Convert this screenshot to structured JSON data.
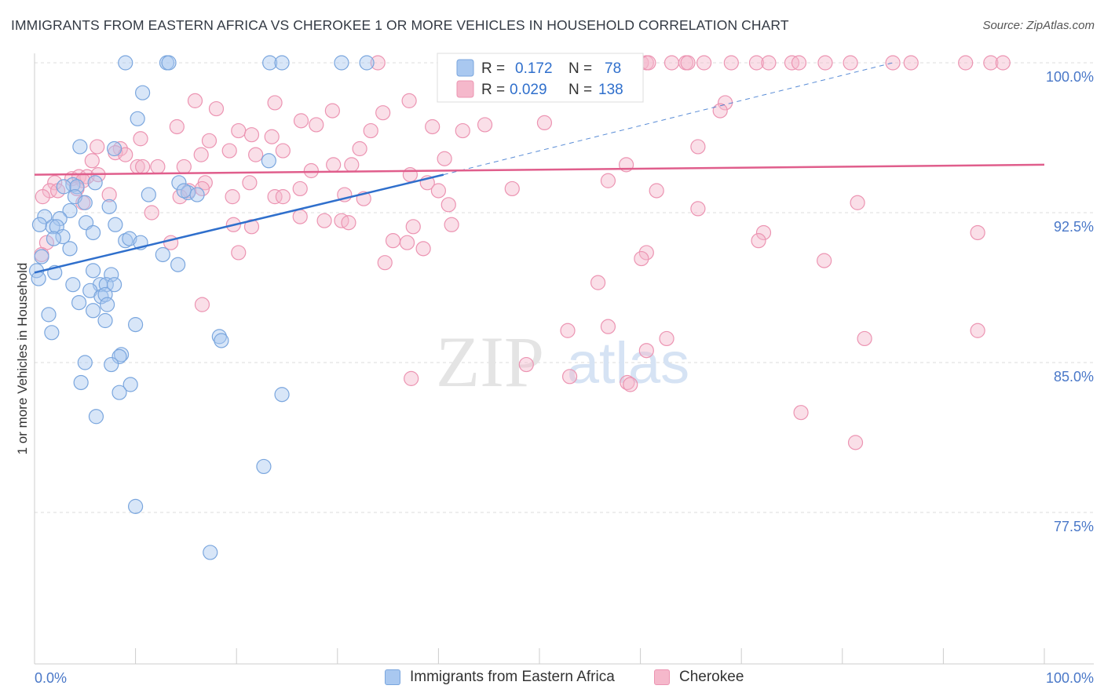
{
  "title": "IMMIGRANTS FROM EASTERN AFRICA VS CHEROKEE 1 OR MORE VEHICLES IN HOUSEHOLD CORRELATION CHART",
  "source": "Source: ZipAtlas.com",
  "watermark": {
    "zip": "ZIP",
    "atlas": "atlas"
  },
  "colors": {
    "blue_fill": "#a9c8f0",
    "blue_stroke": "#7aa6de",
    "blue_line": "#2f6fcc",
    "pink_fill": "#f5b8cb",
    "pink_stroke": "#ec94b2",
    "pink_line": "#e05e8c",
    "tick_text": "#4a78c8",
    "grid": "#dddddd"
  },
  "legend_top": {
    "rows": [
      {
        "r_label": "R =",
        "r_value": "0.172",
        "n_label": "N =",
        "n_value": "78",
        "series": "blue"
      },
      {
        "r_label": "R =",
        "r_value": "0.029",
        "n_label": "N =",
        "n_value": "138",
        "series": "pink"
      }
    ]
  },
  "legend_bottom": [
    {
      "label": "Immigrants from Eastern Africa",
      "series": "blue"
    },
    {
      "label": "Cherokee",
      "series": "pink"
    }
  ],
  "chart_data": {
    "type": "scatter",
    "title": "IMMIGRANTS FROM EASTERN AFRICA VS CHEROKEE 1 OR MORE VEHICLES IN HOUSEHOLD CORRELATION CHART",
    "xlabel": "",
    "ylabel": "1 or more Vehicles in Household",
    "xlim": [
      0,
      100
    ],
    "ylim": [
      70.0,
      101.0
    ],
    "x_tick_labels": [
      "0.0%",
      "100.0%"
    ],
    "y_ticks": [
      77.5,
      85.0,
      92.5,
      100.0
    ],
    "y_tick_labels": [
      "77.5%",
      "85.0%",
      "92.5%",
      "100.0%"
    ],
    "grid": "horizontal dashed",
    "legend_position": "top-center",
    "series": [
      {
        "name": "Immigrants from Eastern Africa",
        "color": "#a9c8f0",
        "R": 0.172,
        "N": 78,
        "trend": {
          "x": [
            0,
            40.5
          ],
          "y": [
            89.5,
            94.4
          ],
          "extended_to": [
            85,
            100.0
          ]
        },
        "points": [
          [
            9.0,
            100.0
          ],
          [
            13.1,
            100.0
          ],
          [
            13.3,
            100.0
          ],
          [
            23.3,
            100.0
          ],
          [
            24.5,
            100.0
          ],
          [
            30.4,
            100.0
          ],
          [
            32.9,
            100.0
          ],
          [
            10.7,
            98.5
          ],
          [
            10.2,
            97.2
          ],
          [
            4.5,
            95.8
          ],
          [
            7.9,
            95.7
          ],
          [
            23.2,
            95.1
          ],
          [
            6.0,
            94.0
          ],
          [
            3.8,
            93.9
          ],
          [
            2.9,
            93.8
          ],
          [
            4.2,
            93.8
          ],
          [
            11.3,
            93.4
          ],
          [
            14.3,
            94.0
          ],
          [
            15.2,
            93.5
          ],
          [
            14.8,
            93.6
          ],
          [
            16.1,
            93.4
          ],
          [
            4.0,
            93.3
          ],
          [
            5.0,
            93.0
          ],
          [
            7.4,
            92.8
          ],
          [
            3.5,
            92.6
          ],
          [
            1.0,
            92.3
          ],
          [
            2.5,
            92.2
          ],
          [
            0.5,
            91.9
          ],
          [
            1.8,
            91.8
          ],
          [
            2.2,
            91.8
          ],
          [
            5.1,
            92.0
          ],
          [
            8.0,
            91.9
          ],
          [
            5.8,
            91.5
          ],
          [
            2.8,
            91.3
          ],
          [
            1.9,
            91.2
          ],
          [
            9.0,
            91.1
          ],
          [
            9.4,
            91.2
          ],
          [
            10.5,
            91.0
          ],
          [
            3.5,
            90.7
          ],
          [
            12.7,
            90.4
          ],
          [
            0.7,
            90.3
          ],
          [
            14.2,
            89.9
          ],
          [
            0.2,
            89.6
          ],
          [
            2.0,
            89.5
          ],
          [
            5.8,
            89.6
          ],
          [
            7.6,
            89.4
          ],
          [
            0.4,
            89.2
          ],
          [
            3.8,
            88.9
          ],
          [
            6.5,
            88.9
          ],
          [
            7.1,
            88.9
          ],
          [
            7.9,
            88.9
          ],
          [
            5.5,
            88.6
          ],
          [
            6.6,
            88.3
          ],
          [
            7.0,
            88.4
          ],
          [
            4.4,
            88.0
          ],
          [
            7.2,
            87.9
          ],
          [
            5.8,
            87.6
          ],
          [
            1.4,
            87.4
          ],
          [
            7.0,
            87.1
          ],
          [
            10.0,
            86.9
          ],
          [
            1.7,
            86.5
          ],
          [
            18.3,
            86.3
          ],
          [
            18.5,
            86.1
          ],
          [
            8.6,
            85.4
          ],
          [
            8.4,
            85.3
          ],
          [
            5.0,
            85.0
          ],
          [
            7.6,
            84.9
          ],
          [
            4.6,
            84.0
          ],
          [
            9.5,
            83.9
          ],
          [
            8.4,
            83.5
          ],
          [
            24.5,
            83.4
          ],
          [
            6.1,
            82.3
          ],
          [
            22.7,
            79.8
          ],
          [
            10.0,
            77.8
          ],
          [
            17.4,
            75.5
          ]
        ]
      },
      {
        "name": "Cherokee",
        "color": "#f5b8cb",
        "R": 0.029,
        "N": 138,
        "trend": {
          "x": [
            0,
            100
          ],
          "y": [
            94.4,
            94.9
          ]
        },
        "points": [
          [
            34.0,
            100.0
          ],
          [
            52.0,
            100.0
          ],
          [
            60.1,
            100.0
          ],
          [
            60.6,
            100.0
          ],
          [
            60.8,
            100.0
          ],
          [
            63.1,
            100.0
          ],
          [
            64.5,
            100.0
          ],
          [
            64.7,
            100.0
          ],
          [
            66.3,
            100.0
          ],
          [
            69.0,
            100.0
          ],
          [
            71.5,
            100.0
          ],
          [
            72.7,
            100.0
          ],
          [
            75.0,
            100.0
          ],
          [
            75.7,
            100.0
          ],
          [
            78.3,
            100.0
          ],
          [
            80.8,
            100.0
          ],
          [
            85.0,
            100.0
          ],
          [
            86.8,
            100.0
          ],
          [
            92.2,
            100.0
          ],
          [
            94.7,
            100.0
          ],
          [
            95.9,
            100.0
          ],
          [
            15.9,
            98.1
          ],
          [
            18.0,
            97.7
          ],
          [
            23.8,
            98.0
          ],
          [
            37.1,
            98.1
          ],
          [
            47.3,
            98.4
          ],
          [
            68.4,
            98.0
          ],
          [
            34.5,
            97.5
          ],
          [
            29.5,
            97.6
          ],
          [
            26.4,
            97.1
          ],
          [
            27.9,
            96.9
          ],
          [
            39.4,
            96.8
          ],
          [
            14.1,
            96.8
          ],
          [
            20.2,
            96.6
          ],
          [
            33.3,
            96.6
          ],
          [
            42.4,
            96.6
          ],
          [
            44.6,
            96.9
          ],
          [
            50.5,
            97.0
          ],
          [
            67.9,
            97.6
          ],
          [
            21.5,
            96.4
          ],
          [
            23.5,
            96.3
          ],
          [
            10.5,
            96.2
          ],
          [
            17.3,
            96.1
          ],
          [
            6.2,
            95.8
          ],
          [
            8.5,
            95.7
          ],
          [
            8.0,
            95.5
          ],
          [
            19.3,
            95.6
          ],
          [
            24.6,
            95.6
          ],
          [
            32.2,
            95.7
          ],
          [
            65.7,
            95.8
          ],
          [
            9.0,
            95.4
          ],
          [
            16.5,
            95.4
          ],
          [
            21.9,
            95.4
          ],
          [
            40.6,
            95.2
          ],
          [
            5.7,
            95.1
          ],
          [
            14.8,
            94.8
          ],
          [
            29.6,
            94.9
          ],
          [
            31.4,
            94.9
          ],
          [
            58.6,
            94.9
          ],
          [
            10.2,
            94.8
          ],
          [
            10.7,
            94.8
          ],
          [
            12.2,
            94.8
          ],
          [
            27.4,
            94.6
          ],
          [
            37.2,
            94.4
          ],
          [
            3.7,
            94.2
          ],
          [
            4.4,
            94.3
          ],
          [
            5.2,
            94.3
          ],
          [
            6.3,
            94.4
          ],
          [
            2.0,
            94.0
          ],
          [
            4.8,
            94.1
          ],
          [
            16.9,
            94.0
          ],
          [
            21.3,
            94.0
          ],
          [
            38.9,
            94.0
          ],
          [
            56.8,
            94.1
          ],
          [
            1.5,
            93.6
          ],
          [
            2.3,
            93.6
          ],
          [
            4.2,
            93.7
          ],
          [
            15.3,
            93.6
          ],
          [
            16.6,
            93.7
          ],
          [
            26.3,
            93.7
          ],
          [
            40.0,
            93.6
          ],
          [
            47.3,
            93.7
          ],
          [
            61.6,
            93.6
          ],
          [
            30.7,
            93.4
          ],
          [
            7.4,
            93.4
          ],
          [
            14.4,
            93.3
          ],
          [
            19.6,
            93.3
          ],
          [
            23.8,
            93.3
          ],
          [
            24.6,
            93.3
          ],
          [
            0.8,
            93.3
          ],
          [
            4.8,
            93.0
          ],
          [
            32.6,
            93.2
          ],
          [
            41.0,
            92.9
          ],
          [
            65.7,
            92.7
          ],
          [
            11.6,
            92.5
          ],
          [
            26.3,
            92.3
          ],
          [
            30.4,
            92.1
          ],
          [
            28.7,
            92.1
          ],
          [
            19.7,
            91.9
          ],
          [
            41.3,
            91.9
          ],
          [
            37.5,
            91.8
          ],
          [
            21.5,
            91.8
          ],
          [
            31.1,
            92.0
          ],
          [
            72.2,
            91.5
          ],
          [
            71.7,
            91.1
          ],
          [
            38.5,
            90.7
          ],
          [
            93.4,
            91.5
          ],
          [
            36.9,
            91.0
          ],
          [
            35.5,
            91.1
          ],
          [
            20.2,
            90.5
          ],
          [
            34.7,
            90.0
          ],
          [
            60.6,
            90.5
          ],
          [
            60.1,
            90.2
          ],
          [
            78.2,
            90.1
          ],
          [
            1.2,
            91.0
          ],
          [
            0.7,
            90.4
          ],
          [
            55.8,
            89.0
          ],
          [
            13.5,
            91.0
          ],
          [
            16.6,
            87.9
          ],
          [
            56.8,
            86.8
          ],
          [
            60.6,
            85.6
          ],
          [
            82.2,
            86.2
          ],
          [
            62.6,
            86.2
          ],
          [
            81.5,
            93.0
          ],
          [
            52.8,
            86.6
          ],
          [
            48.7,
            84.9
          ],
          [
            37.3,
            84.2
          ],
          [
            53.0,
            84.3
          ],
          [
            58.7,
            84.0
          ],
          [
            59.0,
            83.9
          ],
          [
            93.4,
            86.6
          ],
          [
            75.9,
            82.5
          ],
          [
            81.3,
            81.0
          ]
        ]
      }
    ]
  }
}
